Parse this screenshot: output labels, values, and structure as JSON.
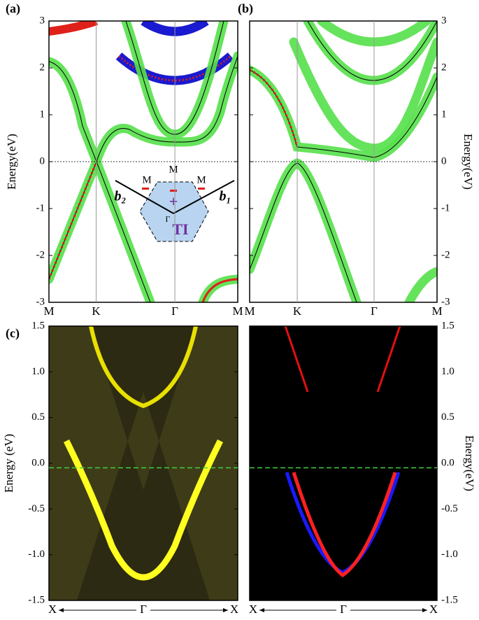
{
  "panels": [
    {
      "label": "(a)",
      "ylabel": "Energy(eV)",
      "ylim": [
        -3,
        3
      ],
      "yticks": [
        -3,
        -2,
        -1,
        0,
        1,
        2,
        3
      ],
      "xticks": [
        "M",
        "K",
        "Γ",
        "M"
      ],
      "fermi": 0
    },
    {
      "label": "(b)",
      "ylabel": "Energy(eV)",
      "ylim": [
        -3,
        3
      ],
      "yticks": [
        -3,
        -2,
        -1,
        0,
        1,
        2,
        3
      ],
      "xticks": [
        "M",
        "K",
        "Γ",
        "M"
      ],
      "fermi": 0
    },
    {
      "label": "(c)",
      "ylabel": "Energy (eV)",
      "ylim": [
        -1.5,
        1.5
      ],
      "yticks": [
        -1.5,
        {
          "value": -1.0,
          "label": "-1.0"
        },
        -0.5,
        {
          "value": 0.0,
          "label": "0.0"
        },
        0.5,
        {
          "value": 1.0,
          "label": "1.0"
        },
        1.5
      ],
      "xticks": [
        "X",
        "Γ",
        "X"
      ],
      "fermi": -0.05
    },
    {
      "ylabel": "Energy(eV)",
      "ylim": [
        -1.5,
        1.5
      ],
      "yticks": [
        -1.5,
        {
          "value": -1.0,
          "label": "-1.0"
        },
        -0.5,
        {
          "value": 0.0,
          "label": "0.0"
        },
        0.5,
        {
          "value": 1.0,
          "label": "1.0"
        },
        1.5
      ],
      "xticks": [
        "X",
        "Γ",
        "X"
      ],
      "fermi": -0.05
    }
  ],
  "inset": {
    "m_top": "M",
    "m_left": "M",
    "m_right": "M",
    "gamma": "Γ",
    "ti": "TI",
    "b1": "b₁",
    "b2": "b₂"
  }
}
